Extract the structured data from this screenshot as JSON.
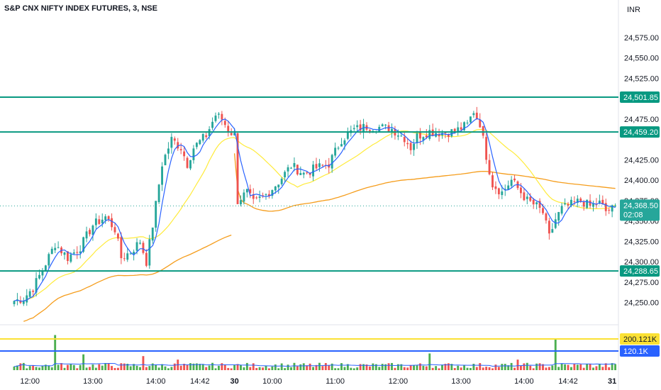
{
  "header": {
    "title": "S&P CNX NIFTY INDEX FUTURES, 3, NSE",
    "currency": "INR"
  },
  "colors": {
    "up": "#26a69a",
    "down": "#ef5350",
    "volume_up": "#4caf50",
    "volume_down": "#ef5350",
    "ma_fast": "#2962ff",
    "ma_slow": "#ffeb3b",
    "vwap": "#f59d1c",
    "level_line": "#089981",
    "volume_avg_line": "#fbe134",
    "volume_ref_line": "#2962ff"
  },
  "chart_data": {
    "type": "candlestick",
    "ylim": [
      24240,
      24595
    ],
    "y_ticks": [
      "24,575.00",
      "24,550.00",
      "24,525.00",
      "24,475.00",
      "24,425.00",
      "24,400.00",
      "24,375.00",
      "24,350.00",
      "24,325.00",
      "24,300.00",
      "24,275.00",
      "24,250.00"
    ],
    "y_tick_values": [
      24575,
      24550,
      24525,
      24475,
      24425,
      24400,
      24375,
      24350,
      24325,
      24300,
      24275,
      24250
    ],
    "x_ticks": [
      {
        "label": "12:00",
        "index": 5,
        "bold": false
      },
      {
        "label": "13:00",
        "index": 25,
        "bold": false
      },
      {
        "label": "14:00",
        "index": 45,
        "bold": false
      },
      {
        "label": "14:42",
        "index": 59,
        "bold": false
      },
      {
        "label": "30",
        "index": 70,
        "bold": true
      },
      {
        "label": "10:00",
        "index": 82,
        "bold": false
      },
      {
        "label": "11:00",
        "index": 102,
        "bold": false
      },
      {
        "label": "12:00",
        "index": 122,
        "bold": false
      },
      {
        "label": "13:00",
        "index": 142,
        "bold": false
      },
      {
        "label": "14:00",
        "index": 162,
        "bold": false
      },
      {
        "label": "14:42",
        "index": 176,
        "bold": false
      },
      {
        "label": "31",
        "index": 190,
        "bold": true
      }
    ],
    "horizontal_levels": [
      {
        "value": 24501.85,
        "label": "24,501.85"
      },
      {
        "value": 24459.2,
        "label": "24,459.20"
      },
      {
        "value": 24288.65,
        "label": "24,288.65"
      }
    ],
    "last_price": {
      "value": 24368.5,
      "label": "24,368.50",
      "countdown": "02:08"
    },
    "volume_levels": [
      {
        "label": "200.121K",
        "color": "#fbe134"
      },
      {
        "label": "120.1K",
        "color": "#2962ff"
      }
    ],
    "anchor_closes": [
      [
        0,
        24252
      ],
      [
        3,
        24255
      ],
      [
        6,
        24268
      ],
      [
        9,
        24290
      ],
      [
        13,
        24322
      ],
      [
        17,
        24305
      ],
      [
        21,
        24318
      ],
      [
        25,
        24345
      ],
      [
        29,
        24355
      ],
      [
        32,
        24340
      ],
      [
        34,
        24305
      ],
      [
        37,
        24312
      ],
      [
        40,
        24325
      ],
      [
        42,
        24300
      ],
      [
        44,
        24345
      ],
      [
        47,
        24420
      ],
      [
        50,
        24450
      ],
      [
        53,
        24440
      ],
      [
        55,
        24420
      ],
      [
        57,
        24440
      ],
      [
        61,
        24455
      ],
      [
        64,
        24480
      ],
      [
        66,
        24475
      ],
      [
        68,
        24462
      ],
      [
        70,
        24455
      ],
      [
        71,
        24375
      ],
      [
        74,
        24385
      ],
      [
        76,
        24372
      ],
      [
        80,
        24382
      ],
      [
        84,
        24398
      ],
      [
        88,
        24418
      ],
      [
        92,
        24408
      ],
      [
        96,
        24415
      ],
      [
        100,
        24420
      ],
      [
        104,
        24450
      ],
      [
        108,
        24462
      ],
      [
        112,
        24466
      ],
      [
        116,
        24465
      ],
      [
        120,
        24463
      ],
      [
        124,
        24452
      ],
      [
        126,
        24440
      ],
      [
        128,
        24454
      ],
      [
        132,
        24460
      ],
      [
        136,
        24458
      ],
      [
        140,
        24460
      ],
      [
        144,
        24468
      ],
      [
        146,
        24485
      ],
      [
        148,
        24470
      ],
      [
        150,
        24430
      ],
      [
        152,
        24395
      ],
      [
        155,
        24385
      ],
      [
        158,
        24400
      ],
      [
        160,
        24390
      ],
      [
        163,
        24375
      ],
      [
        166,
        24368
      ],
      [
        168,
        24360
      ],
      [
        170,
        24330
      ],
      [
        172,
        24352
      ],
      [
        174,
        24365
      ],
      [
        177,
        24370
      ],
      [
        180,
        24375
      ],
      [
        183,
        24368
      ],
      [
        186,
        24372
      ],
      [
        188,
        24362
      ],
      [
        191,
        24366
      ]
    ],
    "volume_spikes": [
      [
        13,
        200
      ],
      [
        22,
        90
      ],
      [
        41,
        80
      ],
      [
        52,
        60
      ],
      [
        132,
        95
      ],
      [
        160,
        60
      ],
      [
        172,
        175
      ]
    ]
  }
}
